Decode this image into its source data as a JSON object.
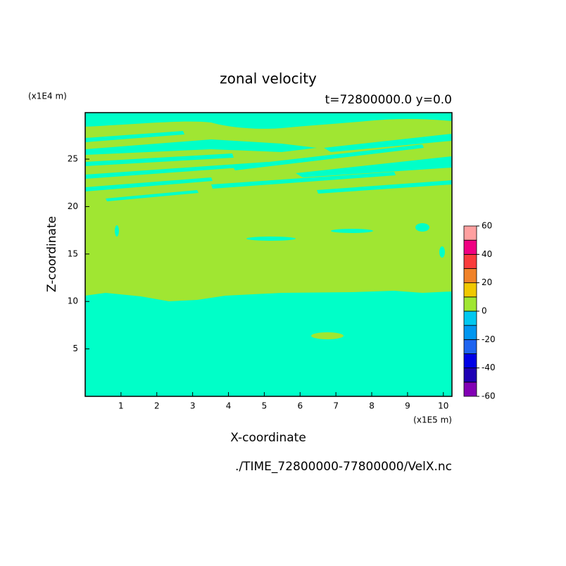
{
  "chart_data": {
    "type": "contour",
    "title": "zonal velocity",
    "subtitle": "t=72800000.0 y=0.0",
    "x_label": "X-coordinate",
    "y_label": "Z-coordinate",
    "x_unit": "(x1E5 m)",
    "y_unit": "(x1E4 m)",
    "source": "./TIME_72800000-77800000/VelX.nc",
    "xlim": [
      0,
      10.24
    ],
    "ylim": [
      0,
      29.9
    ],
    "xticks": [
      1,
      2,
      3,
      4,
      5,
      6,
      7,
      8,
      9,
      10
    ],
    "yticks": [
      5,
      10,
      15,
      20,
      25
    ],
    "colorbar": {
      "levels": [
        -60,
        -40,
        -20,
        0,
        20,
        40,
        60
      ],
      "colors": [
        "#8200b4",
        "#1e00b4",
        "#0000e6",
        "#1e64f0",
        "#0096f0",
        "#00c8f0",
        "#00ffc8",
        "#a0e632",
        "#f0c800",
        "#f08228",
        "#fa3c3c",
        "#f00082",
        "#ffa0a0"
      ]
    }
  }
}
